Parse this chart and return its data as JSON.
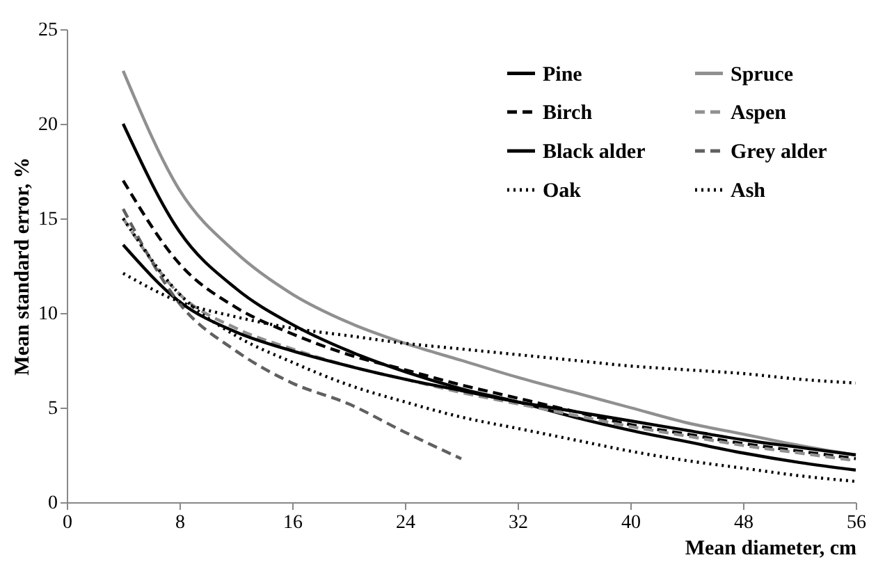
{
  "chart_data": {
    "type": "line",
    "xlabel": "Mean diameter,  cm",
    "ylabel": "Mean standard error, %",
    "xlim": [
      0,
      56
    ],
    "ylim": [
      0,
      25
    ],
    "xticks": [
      0,
      8,
      16,
      24,
      32,
      40,
      48,
      56
    ],
    "yticks": [
      0,
      5,
      10,
      15,
      20,
      25
    ],
    "grid": false,
    "legend": "top right",
    "marker": "none",
    "x": [
      4,
      8,
      12,
      16,
      20,
      24,
      28,
      32,
      36,
      40,
      44,
      48,
      52,
      56
    ],
    "series": [
      {
        "name": "Pine",
        "color": "#000000",
        "line_style": "solid",
        "values": [
          20,
          14.3,
          11.3,
          9.4,
          8.0,
          6.9,
          6.0,
          5.3,
          4.5,
          3.8,
          3.2,
          2.6,
          2.1,
          1.7
        ]
      },
      {
        "name": "Spruce",
        "color": "#909090",
        "line_style": "solid",
        "values": [
          22.8,
          16.5,
          13.2,
          11.0,
          9.5,
          8.4,
          7.5,
          6.6,
          5.8,
          5.0,
          4.2,
          3.6,
          3.0,
          2.5
        ]
      },
      {
        "name": "Birch",
        "color": "#000000",
        "line_style": "dashed",
        "values": [
          17,
          12.6,
          10.3,
          8.9,
          7.8,
          7.0,
          6.2,
          5.5,
          4.8,
          4.1,
          3.6,
          3.1,
          2.7,
          2.3
        ]
      },
      {
        "name": "Aspen",
        "color": "#909090",
        "line_style": "dashed",
        "values": [
          15,
          11.0,
          9.2,
          8.1,
          7.2,
          6.5,
          5.8,
          5.2,
          4.6,
          4.0,
          3.5,
          3.0,
          2.6,
          2.2
        ]
      },
      {
        "name": "Black alder",
        "color": "#000000",
        "line_style": "solid",
        "values": [
          13.6,
          10.6,
          9.0,
          8.0,
          7.2,
          6.5,
          5.9,
          5.3,
          4.8,
          4.3,
          3.8,
          3.3,
          2.9,
          2.5
        ]
      },
      {
        "name": "Grey alder",
        "color": "#606060",
        "line_style": "dashed",
        "x": [
          4,
          8,
          12,
          16,
          20,
          24,
          28
        ],
        "values": [
          15.5,
          10.5,
          8.0,
          6.3,
          5.2,
          3.7,
          2.3
        ]
      },
      {
        "name": "Oak",
        "color": "#000000",
        "line_style": "dotted",
        "values": [
          12.1,
          10.6,
          9.8,
          9.2,
          8.8,
          8.4,
          8.1,
          7.8,
          7.5,
          7.2,
          7.0,
          6.8,
          6.5,
          6.3
        ]
      },
      {
        "name": "Ash",
        "color": "#000000",
        "line_style": "dotted",
        "values": [
          15,
          11.0,
          8.8,
          7.4,
          6.2,
          5.3,
          4.5,
          3.9,
          3.3,
          2.7,
          2.2,
          1.8,
          1.4,
          1.1
        ]
      }
    ]
  }
}
